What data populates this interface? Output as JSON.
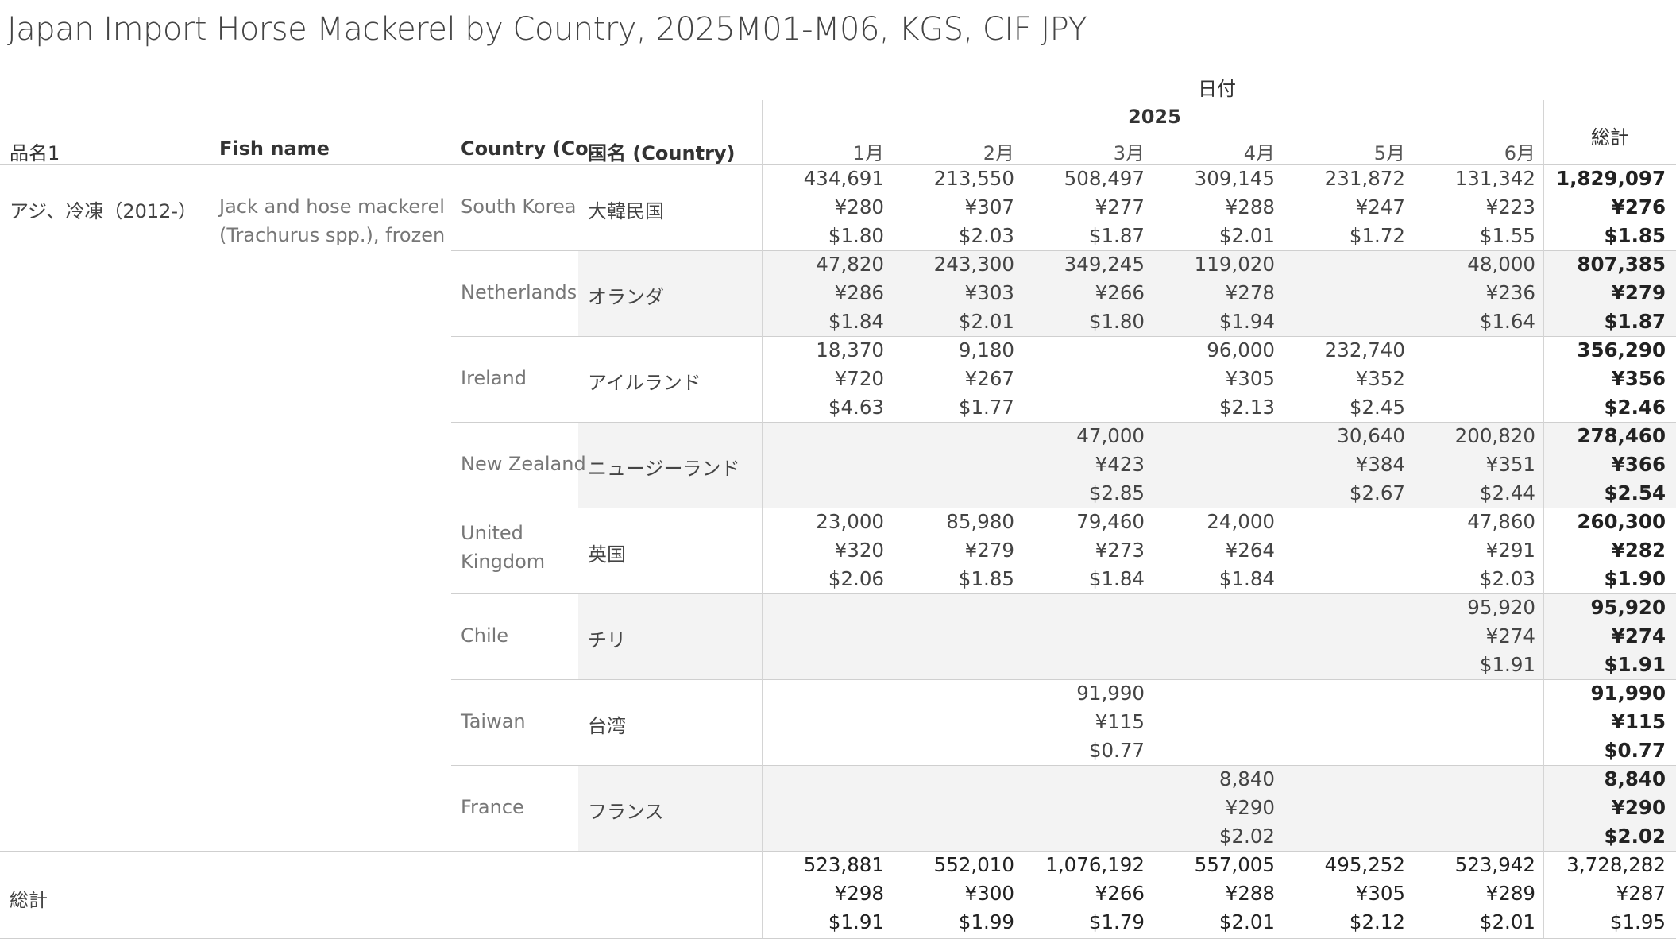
{
  "title": "Japan Import Horse Mackerel by Country, 2025M01-M06, KGS, CIF JPY",
  "header": {
    "date_label": "日付",
    "year_label": "2025",
    "total_label": "総計",
    "col_item": "品名1",
    "col_fish": "Fish name",
    "col_country": "Country (Co..",
    "col_country_jp": "国名 (Country)",
    "months": [
      "1月",
      "2月",
      "3月",
      "4月",
      "5月",
      "6月"
    ]
  },
  "item": {
    "name": "アジ、冷凍（2012-）",
    "fish_line1": "Jack and hose mackerel",
    "fish_line2": "(Trachurus spp.), frozen"
  },
  "grand_total_label": "総計",
  "chart_data": {
    "type": "table",
    "title": "Japan Import Horse Mackerel by Country, 2025M01-M06, KGS, CIF JPY",
    "measures": [
      "kgs",
      "jpy_per_kg",
      "usd_per_kg"
    ],
    "rows": [
      {
        "country": "South Korea",
        "country_jp": "大韓民国",
        "months": [
          [
            "434,691",
            "¥280",
            "$1.80"
          ],
          [
            "213,550",
            "¥307",
            "$2.03"
          ],
          [
            "508,497",
            "¥277",
            "$1.87"
          ],
          [
            "309,145",
            "¥288",
            "$2.01"
          ],
          [
            "231,872",
            "¥247",
            "$1.72"
          ],
          [
            "131,342",
            "¥223",
            "$1.55"
          ]
        ],
        "total": [
          "1,829,097",
          "¥276",
          "$1.85"
        ]
      },
      {
        "country": "Netherlands",
        "country_jp": "オランダ",
        "months": [
          [
            "47,820",
            "¥286",
            "$1.84"
          ],
          [
            "243,300",
            "¥303",
            "$2.01"
          ],
          [
            "349,245",
            "¥266",
            "$1.80"
          ],
          [
            "119,020",
            "¥278",
            "$1.94"
          ],
          null,
          [
            "48,000",
            "¥236",
            "$1.64"
          ]
        ],
        "total": [
          "807,385",
          "¥279",
          "$1.87"
        ]
      },
      {
        "country": "Ireland",
        "country_jp": "アイルランド",
        "months": [
          [
            "18,370",
            "¥720",
            "$4.63"
          ],
          [
            "9,180",
            "¥267",
            "$1.77"
          ],
          null,
          [
            "96,000",
            "¥305",
            "$2.13"
          ],
          [
            "232,740",
            "¥352",
            "$2.45"
          ],
          null
        ],
        "total": [
          "356,290",
          "¥356",
          "$2.46"
        ]
      },
      {
        "country": "New Zealand",
        "country_jp": "ニュージーランド",
        "months": [
          null,
          null,
          [
            "47,000",
            "¥423",
            "$2.85"
          ],
          null,
          [
            "30,640",
            "¥384",
            "$2.67"
          ],
          [
            "200,820",
            "¥351",
            "$2.44"
          ]
        ],
        "total": [
          "278,460",
          "¥366",
          "$2.54"
        ]
      },
      {
        "country": "United Kingdom",
        "country_line1": "United",
        "country_line2": "Kingdom",
        "country_jp": "英国",
        "months": [
          [
            "23,000",
            "¥320",
            "$2.06"
          ],
          [
            "85,980",
            "¥279",
            "$1.85"
          ],
          [
            "79,460",
            "¥273",
            "$1.84"
          ],
          [
            "24,000",
            "¥264",
            "$1.84"
          ],
          null,
          [
            "47,860",
            "¥291",
            "$2.03"
          ]
        ],
        "total": [
          "260,300",
          "¥282",
          "$1.90"
        ]
      },
      {
        "country": "Chile",
        "country_jp": "チリ",
        "months": [
          null,
          null,
          null,
          null,
          null,
          [
            "95,920",
            "¥274",
            "$1.91"
          ]
        ],
        "total": [
          "95,920",
          "¥274",
          "$1.91"
        ]
      },
      {
        "country": "Taiwan",
        "country_jp": "台湾",
        "months": [
          null,
          null,
          [
            "91,990",
            "¥115",
            "$0.77"
          ],
          null,
          null,
          null
        ],
        "total": [
          "91,990",
          "¥115",
          "$0.77"
        ]
      },
      {
        "country": "France",
        "country_jp": "フランス",
        "months": [
          null,
          null,
          null,
          [
            "8,840",
            "¥290",
            "$2.02"
          ],
          null,
          null
        ],
        "total": [
          "8,840",
          "¥290",
          "$2.02"
        ]
      }
    ],
    "grand_total": {
      "months": [
        [
          "523,881",
          "¥298",
          "$1.91"
        ],
        [
          "552,010",
          "¥300",
          "$1.99"
        ],
        [
          "1,076,192",
          "¥266",
          "$1.79"
        ],
        [
          "557,005",
          "¥288",
          "$2.01"
        ],
        [
          "495,252",
          "¥305",
          "$2.12"
        ],
        [
          "523,942",
          "¥289",
          "$2.01"
        ]
      ],
      "total": [
        "3,728,282",
        "¥287",
        "$1.95"
      ]
    }
  }
}
